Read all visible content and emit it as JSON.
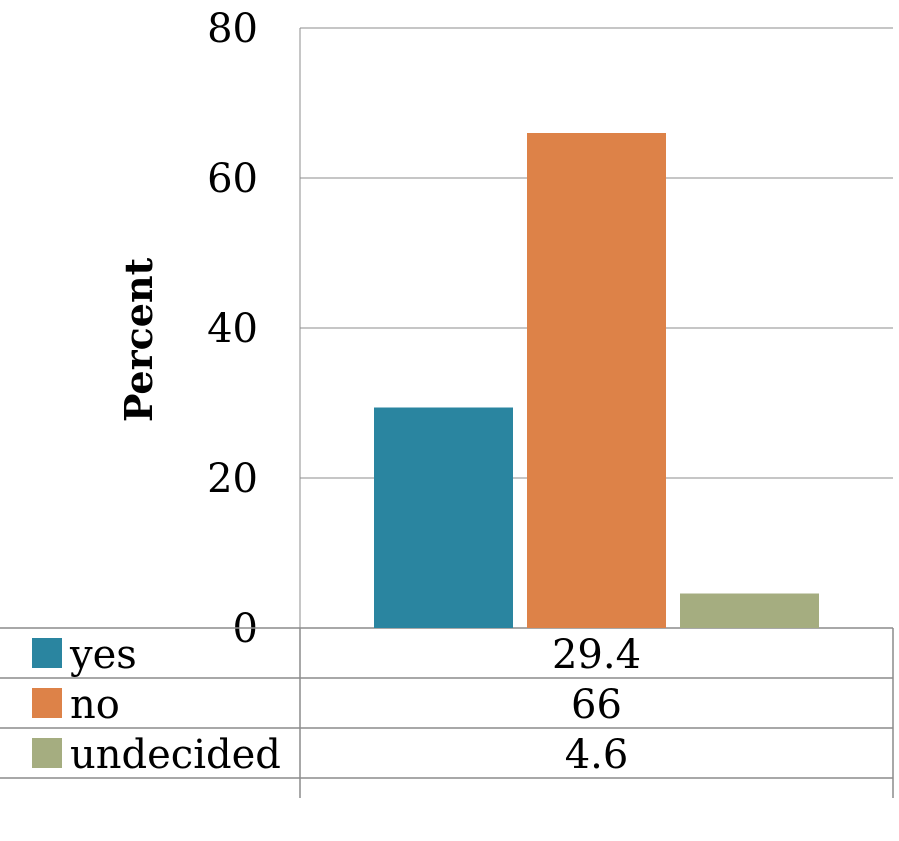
{
  "chart_data": {
    "type": "bar",
    "categories": [
      "yes",
      "no",
      "undecided"
    ],
    "values": [
      29.4,
      66,
      4.6
    ],
    "value_labels": [
      "29.4",
      "66",
      "4.6"
    ],
    "ylabel": "Percent",
    "ylim": [
      0,
      80
    ],
    "yticks": [
      0,
      20,
      40,
      60,
      80
    ],
    "grid": true,
    "legend": "data-table-below",
    "colors": [
      "#2a85a0",
      "#dd8248",
      "#a5ad80"
    ]
  }
}
